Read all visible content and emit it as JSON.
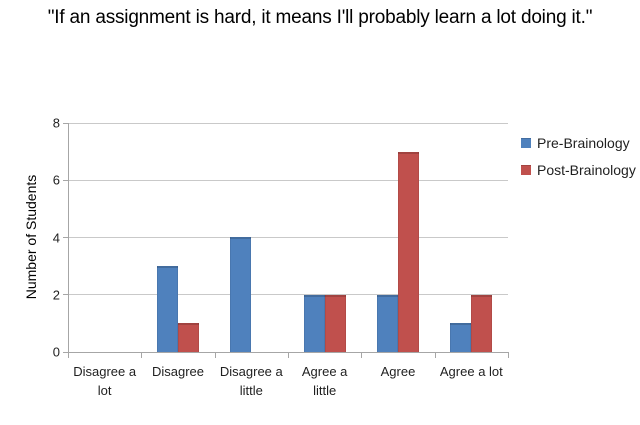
{
  "title": "\"If an assignment is hard, it means I'll probably learn a lot doing it.\"",
  "chart_data": {
    "type": "bar",
    "categories": [
      "Disagree a lot",
      "Disagree",
      "Disagree a little",
      "Agree a little",
      "Agree",
      "Agree a lot"
    ],
    "series": [
      {
        "name": "Pre-Brainology",
        "color": "#4F81BD",
        "values": [
          0,
          3,
          4,
          2,
          2,
          1
        ]
      },
      {
        "name": "Post-Brainology",
        "color": "#C0504D",
        "values": [
          0,
          1,
          0,
          2,
          7,
          2
        ]
      }
    ],
    "xlabel": "",
    "ylabel": "Number of Students",
    "ylim": [
      0,
      8
    ],
    "yticks": [
      0,
      2,
      4,
      6,
      8
    ],
    "grid": true,
    "legend_position": "right"
  },
  "colors": {
    "gridline": "#c9c9c9",
    "axis": "#a6a6a6",
    "text": "#1f1f1f"
  }
}
